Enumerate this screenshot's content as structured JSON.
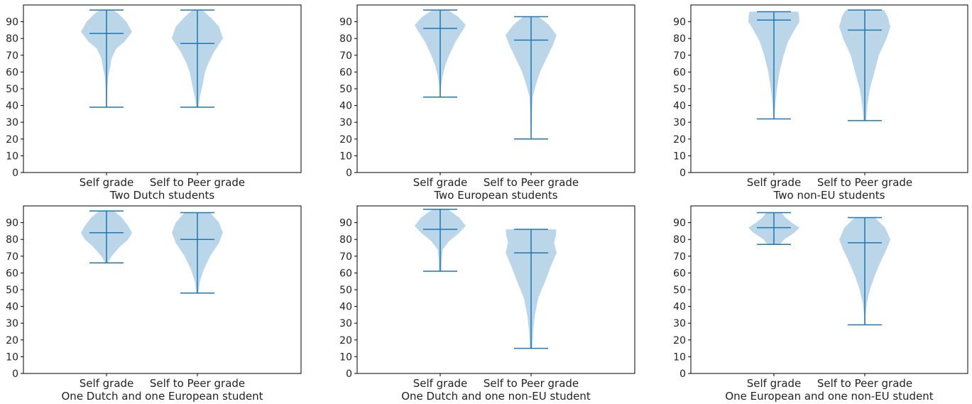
{
  "colors": {
    "body": "#1f77b4",
    "line": "#1f77b4",
    "axis": "#000000"
  },
  "chart_data": [
    {
      "type": "violin",
      "xlabel": "Two Dutch students",
      "categories": [
        "Self grade",
        "Self to Peer grade"
      ],
      "ylim": [
        0,
        100
      ],
      "yticks": [
        0,
        10,
        20,
        30,
        40,
        50,
        60,
        70,
        80,
        90
      ],
      "violins": [
        {
          "min": 39,
          "median": 83,
          "max": 97,
          "profile": [
            [
              39,
              0.02
            ],
            [
              50,
              0.03
            ],
            [
              57,
              0.06
            ],
            [
              62,
              0.13
            ],
            [
              68,
              0.2
            ],
            [
              74,
              0.38
            ],
            [
              78,
              0.7
            ],
            [
              84,
              1.0
            ],
            [
              90,
              0.78
            ],
            [
              95,
              0.45
            ],
            [
              97,
              0.25
            ]
          ]
        },
        {
          "min": 39,
          "median": 77,
          "max": 97,
          "profile": [
            [
              39,
              0.04
            ],
            [
              45,
              0.1
            ],
            [
              52,
              0.2
            ],
            [
              60,
              0.3
            ],
            [
              66,
              0.45
            ],
            [
              72,
              0.65
            ],
            [
              80,
              1.0
            ],
            [
              87,
              0.85
            ],
            [
              92,
              0.55
            ],
            [
              97,
              0.2
            ]
          ]
        }
      ]
    },
    {
      "type": "violin",
      "xlabel": "Two European students",
      "categories": [
        "Self grade",
        "Self to Peer grade"
      ],
      "ylim": [
        0,
        100
      ],
      "yticks": [
        0,
        10,
        20,
        30,
        40,
        50,
        60,
        70,
        80,
        90
      ],
      "violins": [
        {
          "min": 45,
          "median": 86,
          "max": 97,
          "profile": [
            [
              45,
              0.02
            ],
            [
              52,
              0.04
            ],
            [
              58,
              0.1
            ],
            [
              64,
              0.2
            ],
            [
              70,
              0.35
            ],
            [
              78,
              0.6
            ],
            [
              84,
              0.85
            ],
            [
              88,
              1.0
            ],
            [
              93,
              0.7
            ],
            [
              97,
              0.3
            ]
          ]
        },
        {
          "min": 20,
          "median": 79,
          "max": 93,
          "profile": [
            [
              20,
              0.01
            ],
            [
              35,
              0.03
            ],
            [
              45,
              0.06
            ],
            [
              52,
              0.18
            ],
            [
              60,
              0.35
            ],
            [
              68,
              0.6
            ],
            [
              76,
              0.85
            ],
            [
              82,
              1.0
            ],
            [
              88,
              0.7
            ],
            [
              93,
              0.3
            ]
          ]
        }
      ]
    },
    {
      "type": "violin",
      "xlabel": "Two non-EU students",
      "categories": [
        "Self grade",
        "Self to Peer grade"
      ],
      "ylim": [
        0,
        100
      ],
      "yticks": [
        0,
        10,
        20,
        30,
        40,
        50,
        60,
        70,
        80,
        90
      ],
      "violins": [
        {
          "min": 32,
          "median": 91,
          "max": 96,
          "profile": [
            [
              32,
              0.02
            ],
            [
              40,
              0.05
            ],
            [
              50,
              0.12
            ],
            [
              60,
              0.22
            ],
            [
              70,
              0.38
            ],
            [
              78,
              0.55
            ],
            [
              85,
              0.8
            ],
            [
              90,
              1.0
            ],
            [
              94,
              0.98
            ],
            [
              96,
              0.95
            ]
          ]
        },
        {
          "min": 31,
          "median": 85,
          "max": 97,
          "profile": [
            [
              31,
              0.05
            ],
            [
              40,
              0.1
            ],
            [
              50,
              0.2
            ],
            [
              60,
              0.38
            ],
            [
              70,
              0.55
            ],
            [
              80,
              0.85
            ],
            [
              87,
              1.0
            ],
            [
              93,
              0.9
            ],
            [
              97,
              0.75
            ]
          ]
        }
      ]
    },
    {
      "type": "violin",
      "xlabel": "One Dutch and one European student",
      "categories": [
        "Self grade",
        "Self to Peer grade"
      ],
      "ylim": [
        0,
        100
      ],
      "yticks": [
        0,
        10,
        20,
        30,
        40,
        50,
        60,
        70,
        80,
        90
      ],
      "violins": [
        {
          "min": 66,
          "median": 84,
          "max": 97,
          "profile": [
            [
              66,
              0.05
            ],
            [
              70,
              0.2
            ],
            [
              76,
              0.55
            ],
            [
              80,
              0.85
            ],
            [
              84,
              1.0
            ],
            [
              88,
              0.85
            ],
            [
              93,
              0.6
            ],
            [
              97,
              0.3
            ]
          ]
        },
        {
          "min": 48,
          "median": 80,
          "max": 96,
          "profile": [
            [
              48,
              0.04
            ],
            [
              55,
              0.1
            ],
            [
              62,
              0.25
            ],
            [
              70,
              0.5
            ],
            [
              78,
              0.85
            ],
            [
              84,
              1.0
            ],
            [
              90,
              0.85
            ],
            [
              96,
              0.5
            ]
          ]
        }
      ]
    },
    {
      "type": "violin",
      "xlabel": "One Dutch and one non-EU student",
      "categories": [
        "Self grade",
        "Self to Peer grade"
      ],
      "ylim": [
        0,
        100
      ],
      "yticks": [
        0,
        10,
        20,
        30,
        40,
        50,
        60,
        70,
        80,
        90
      ],
      "violins": [
        {
          "min": 61,
          "median": 86,
          "max": 98,
          "profile": [
            [
              61,
              0.05
            ],
            [
              68,
              0.06
            ],
            [
              74,
              0.1
            ],
            [
              79,
              0.35
            ],
            [
              84,
              0.75
            ],
            [
              88,
              1.0
            ],
            [
              93,
              0.75
            ],
            [
              98,
              0.3
            ]
          ]
        },
        {
          "min": 15,
          "median": 72,
          "max": 86,
          "profile": [
            [
              15,
              0.05
            ],
            [
              25,
              0.08
            ],
            [
              35,
              0.15
            ],
            [
              45,
              0.28
            ],
            [
              55,
              0.55
            ],
            [
              65,
              0.8
            ],
            [
              72,
              1.0
            ],
            [
              78,
              0.9
            ],
            [
              83,
              0.98
            ],
            [
              86,
              0.98
            ]
          ]
        }
      ]
    },
    {
      "type": "violin",
      "xlabel": "One European and one non-EU student",
      "categories": [
        "Self grade",
        "Self to Peer grade"
      ],
      "ylim": [
        0,
        100
      ],
      "yticks": [
        0,
        10,
        20,
        30,
        40,
        50,
        60,
        70,
        80,
        90
      ],
      "violins": [
        {
          "min": 77,
          "median": 87,
          "max": 96,
          "profile": [
            [
              77,
              0.25
            ],
            [
              80,
              0.4
            ],
            [
              84,
              0.8
            ],
            [
              87,
              1.0
            ],
            [
              90,
              0.7
            ],
            [
              93,
              0.45
            ],
            [
              96,
              0.3
            ]
          ]
        },
        {
          "min": 29,
          "median": 78,
          "max": 93,
          "profile": [
            [
              29,
              0.02
            ],
            [
              35,
              0.03
            ],
            [
              42,
              0.08
            ],
            [
              50,
              0.2
            ],
            [
              58,
              0.38
            ],
            [
              66,
              0.6
            ],
            [
              74,
              0.85
            ],
            [
              80,
              1.0
            ],
            [
              87,
              0.8
            ],
            [
              93,
              0.4
            ]
          ]
        }
      ]
    }
  ]
}
